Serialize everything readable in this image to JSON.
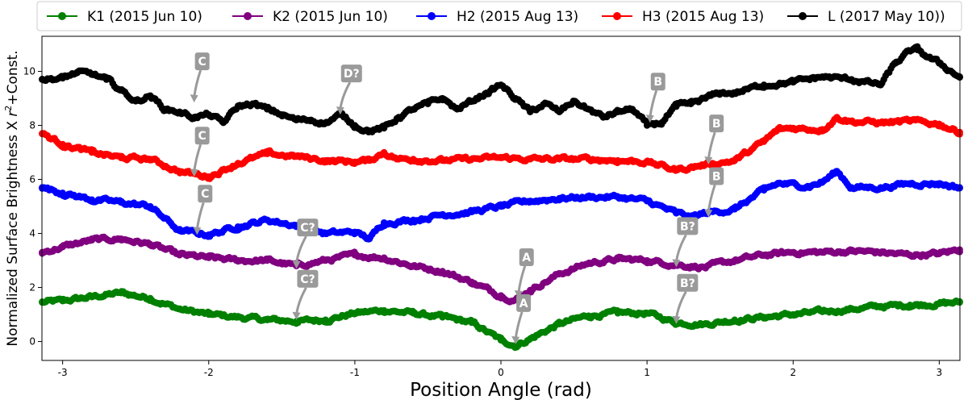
{
  "chart_data": {
    "type": "scatter",
    "title": "",
    "xlabel": "Position Angle (rad)",
    "ylabel_parts": {
      "pre": "Normalized Surface Brightness X ",
      "var": "r",
      "sup": "2",
      "post": "+Const."
    },
    "xlim": [
      -3.14159,
      3.14159
    ],
    "ylim": [
      -0.7,
      11.3
    ],
    "x_ticks": [
      -3,
      -2,
      -1,
      0,
      1,
      2,
      3
    ],
    "x_tick_labels": [
      "-3",
      "-2",
      "-1",
      "0",
      "1",
      "2",
      "3"
    ],
    "y_ticks": [
      0,
      2,
      4,
      6,
      8,
      10
    ],
    "y_tick_labels": [
      "0",
      "2",
      "4",
      "6",
      "8",
      "10"
    ],
    "grid": false,
    "legend_position": "top",
    "series": [
      {
        "name": "K1 (2015 Jun 10)",
        "color": "#008000",
        "x": [
          -3.14,
          -3.0,
          -2.8,
          -2.6,
          -2.4,
          -2.2,
          -2.0,
          -1.8,
          -1.6,
          -1.4,
          -1.2,
          -1.0,
          -0.8,
          -0.6,
          -0.4,
          -0.2,
          0.0,
          0.1,
          0.2,
          0.4,
          0.6,
          0.8,
          1.0,
          1.2,
          1.4,
          1.6,
          1.8,
          2.0,
          2.2,
          2.4,
          2.6,
          2.8,
          3.0,
          3.14
        ],
        "y": [
          1.45,
          1.5,
          1.65,
          1.8,
          1.6,
          1.2,
          1.0,
          0.9,
          0.8,
          0.75,
          0.8,
          1.05,
          1.15,
          1.05,
          0.9,
          0.7,
          0.05,
          -0.15,
          0.1,
          0.65,
          0.95,
          1.05,
          1.05,
          0.7,
          0.65,
          0.8,
          0.9,
          1.0,
          1.1,
          1.2,
          1.3,
          1.35,
          1.4,
          1.45
        ]
      },
      {
        "name": "K2 (2015 Jun 10)",
        "color": "#800080",
        "x": [
          -3.14,
          -3.0,
          -2.8,
          -2.6,
          -2.4,
          -2.2,
          -2.0,
          -1.8,
          -1.6,
          -1.4,
          -1.2,
          -1.0,
          -0.8,
          -0.6,
          -0.4,
          -0.2,
          0.0,
          0.1,
          0.2,
          0.4,
          0.6,
          0.8,
          1.0,
          1.2,
          1.4,
          1.6,
          1.8,
          2.0,
          2.2,
          2.4,
          2.6,
          2.8,
          3.0,
          3.14
        ],
        "y": [
          3.3,
          3.5,
          3.75,
          3.8,
          3.6,
          3.2,
          3.1,
          3.0,
          3.0,
          2.8,
          3.0,
          3.2,
          3.1,
          2.8,
          2.6,
          2.2,
          1.7,
          1.55,
          1.9,
          2.5,
          2.9,
          3.05,
          3.0,
          2.85,
          2.75,
          3.0,
          3.2,
          3.3,
          3.3,
          3.35,
          3.3,
          3.2,
          3.25,
          3.4
        ]
      },
      {
        "name": "H2 (2015 Aug 13)",
        "color": "#0000ff",
        "x": [
          -3.14,
          -3.0,
          -2.8,
          -2.6,
          -2.4,
          -2.2,
          -2.0,
          -1.8,
          -1.6,
          -1.4,
          -1.2,
          -1.0,
          -0.9,
          -0.8,
          -0.6,
          -0.4,
          -0.2,
          0.0,
          0.2,
          0.4,
          0.6,
          0.8,
          1.0,
          1.2,
          1.3,
          1.4,
          1.6,
          1.8,
          1.9,
          2.1,
          2.2,
          2.3,
          2.4,
          2.6,
          2.8,
          3.0,
          3.14
        ],
        "y": [
          5.7,
          5.5,
          5.25,
          5.15,
          5.0,
          4.1,
          3.95,
          4.25,
          4.5,
          4.3,
          4.0,
          4.05,
          3.8,
          4.4,
          4.5,
          4.7,
          4.8,
          5.0,
          5.2,
          5.3,
          5.35,
          5.35,
          5.2,
          4.75,
          4.6,
          4.75,
          4.9,
          5.6,
          5.85,
          5.75,
          5.9,
          6.3,
          5.7,
          5.7,
          5.85,
          5.85,
          5.7
        ]
      },
      {
        "name": "H3 (2015 Aug 13)",
        "color": "#ff0000",
        "x": [
          -3.14,
          -3.0,
          -2.8,
          -2.6,
          -2.4,
          -2.2,
          -2.0,
          -1.8,
          -1.6,
          -1.4,
          -1.2,
          -1.0,
          -0.9,
          -0.8,
          -0.7,
          -0.6,
          -0.4,
          -0.2,
          0.0,
          0.2,
          0.4,
          0.6,
          0.8,
          1.0,
          1.2,
          1.4,
          1.6,
          1.8,
          1.9,
          2.0,
          2.2,
          2.3,
          2.4,
          2.6,
          2.8,
          3.0,
          3.14
        ],
        "y": [
          7.7,
          7.3,
          7.0,
          6.8,
          6.75,
          6.3,
          6.1,
          6.6,
          6.95,
          6.85,
          6.7,
          6.65,
          6.7,
          7.0,
          6.75,
          6.75,
          6.7,
          6.75,
          6.8,
          6.75,
          6.75,
          6.75,
          6.7,
          6.65,
          6.35,
          6.55,
          6.7,
          7.4,
          7.85,
          7.9,
          7.85,
          8.3,
          8.15,
          8.1,
          8.15,
          8.05,
          7.75
        ]
      },
      {
        "name": "L  (2017 May 10))",
        "color": "#000000",
        "x": [
          -3.14,
          -3.0,
          -2.9,
          -2.8,
          -2.7,
          -2.6,
          -2.5,
          -2.4,
          -2.3,
          -2.2,
          -2.1,
          -2.0,
          -1.9,
          -1.8,
          -1.7,
          -1.6,
          -1.5,
          -1.4,
          -1.3,
          -1.2,
          -1.1,
          -1.0,
          -0.9,
          -0.8,
          -0.7,
          -0.6,
          -0.5,
          -0.4,
          -0.3,
          -0.2,
          -0.1,
          0.0,
          0.1,
          0.2,
          0.3,
          0.4,
          0.5,
          0.6,
          0.7,
          0.8,
          0.9,
          1.0,
          1.1,
          1.2,
          1.3,
          1.4,
          1.5,
          1.6,
          1.8,
          2.0,
          2.2,
          2.4,
          2.6,
          2.7,
          2.8,
          2.85,
          2.9,
          3.0,
          3.14
        ],
        "y": [
          9.7,
          9.75,
          9.95,
          9.9,
          9.7,
          9.3,
          8.9,
          9.1,
          8.6,
          8.5,
          8.3,
          8.4,
          8.1,
          8.7,
          8.8,
          8.6,
          8.4,
          8.2,
          8.2,
          8.1,
          8.4,
          8.0,
          7.8,
          7.9,
          8.3,
          8.6,
          8.8,
          9.0,
          8.6,
          8.9,
          9.2,
          9.5,
          9.0,
          8.5,
          8.8,
          8.5,
          8.9,
          8.6,
          8.3,
          8.5,
          8.6,
          8.0,
          8.1,
          8.7,
          8.8,
          9.0,
          9.2,
          9.2,
          9.5,
          9.6,
          9.8,
          9.7,
          9.5,
          10.3,
          10.75,
          10.8,
          10.6,
          10.3,
          9.8
        ]
      }
    ],
    "annotations": [
      {
        "label": "C",
        "x": -2.1,
        "y": 8.85
      },
      {
        "label": "D?",
        "x": -1.1,
        "y": 8.4
      },
      {
        "label": "B",
        "x": 1.02,
        "y": 8.1
      },
      {
        "label": "C",
        "x": -2.1,
        "y": 6.1
      },
      {
        "label": "B",
        "x": 1.42,
        "y": 6.55
      },
      {
        "label": "C",
        "x": -2.08,
        "y": 3.95
      },
      {
        "label": "B",
        "x": 1.42,
        "y": 4.6
      },
      {
        "label": "C?",
        "x": -1.4,
        "y": 2.7
      },
      {
        "label": "B?",
        "x": 1.2,
        "y": 2.75
      },
      {
        "label": "A",
        "x": 0.12,
        "y": 1.6
      },
      {
        "label": "C?",
        "x": -1.4,
        "y": 0.8
      },
      {
        "label": "B?",
        "x": 1.2,
        "y": 0.65
      },
      {
        "label": "A",
        "x": 0.1,
        "y": -0.1
      }
    ]
  }
}
